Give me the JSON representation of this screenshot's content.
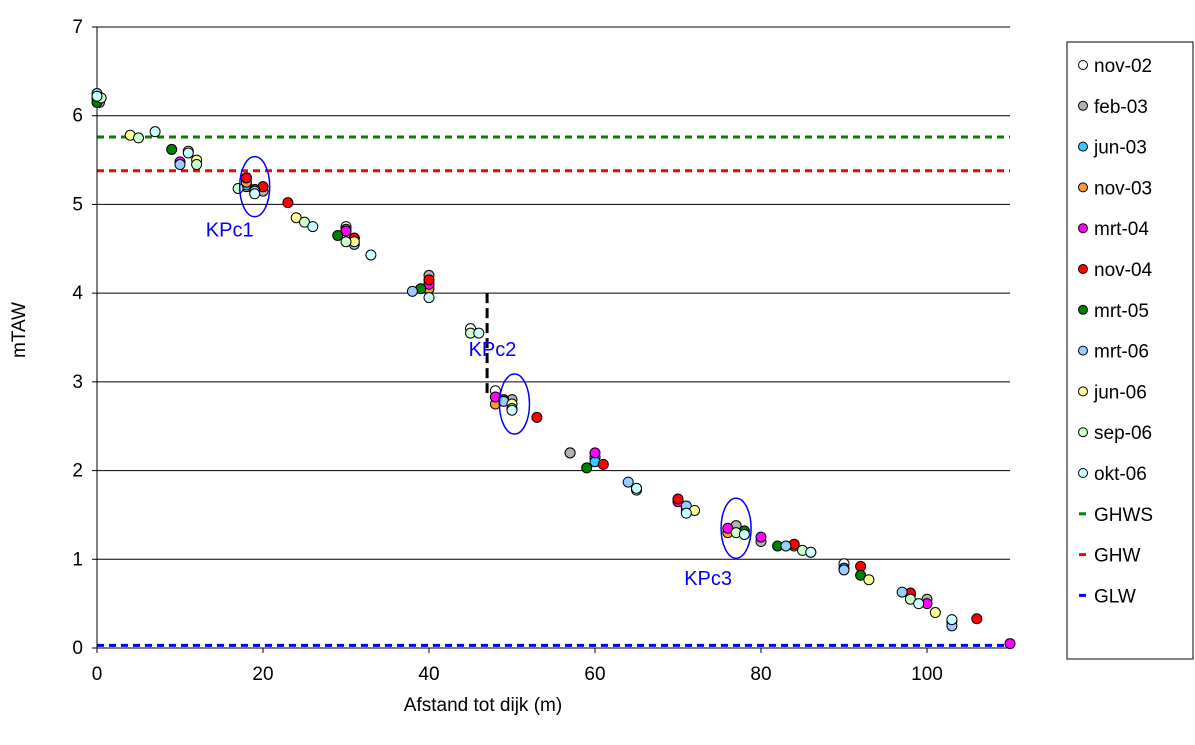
{
  "chart_data": {
    "type": "scatter",
    "xlabel": "Afstand tot dijk (m)",
    "ylabel": "mTAW",
    "xlim": [
      0,
      110
    ],
    "ylim": [
      0,
      7
    ],
    "xticks": [
      "0",
      "20",
      "40",
      "60",
      "80",
      "100"
    ],
    "yticks": [
      "0",
      "1",
      "2",
      "3",
      "4",
      "5",
      "6",
      "7"
    ],
    "grid": "horizontal",
    "legend_position": "right",
    "series": [
      {
        "name": "nov-02",
        "color": "#ffffff",
        "points": [
          [
            0,
            6.2
          ],
          [
            11,
            5.6
          ],
          [
            30,
            4.75
          ],
          [
            40,
            4.15
          ],
          [
            45,
            3.6
          ],
          [
            48,
            2.9
          ],
          [
            57,
            2.2
          ],
          [
            60,
            2.15
          ],
          [
            65,
            1.8
          ],
          [
            71,
            1.55
          ],
          [
            77,
            1.35
          ],
          [
            90,
            0.95
          ],
          [
            103,
            0.3
          ]
        ]
      },
      {
        "name": "feb-03",
        "color": "#b2b2b2",
        "points": [
          [
            0.3,
            6.15
          ],
          [
            18,
            5.2
          ],
          [
            20,
            5.15
          ],
          [
            30,
            4.72
          ],
          [
            40,
            4.2
          ],
          [
            50,
            2.8
          ],
          [
            57,
            2.2
          ],
          [
            60,
            2.15
          ],
          [
            77,
            1.38
          ],
          [
            80,
            1.2
          ],
          [
            100,
            0.55
          ]
        ]
      },
      {
        "name": "jun-03",
        "color": "#33ccff",
        "points": [
          [
            0,
            6.2
          ],
          [
            18,
            5.22
          ],
          [
            30,
            4.7
          ],
          [
            40,
            4.1
          ],
          [
            60,
            2.1
          ],
          [
            70,
            1.65
          ],
          [
            90,
            0.9
          ]
        ]
      },
      {
        "name": "nov-03",
        "color": "#ff9933",
        "points": [
          [
            0.2,
            6.2
          ],
          [
            18,
            5.25
          ],
          [
            31,
            4.62
          ],
          [
            40,
            4.05
          ],
          [
            48,
            2.75
          ],
          [
            76,
            1.3
          ],
          [
            84,
            1.15
          ],
          [
            98,
            0.6
          ]
        ]
      },
      {
        "name": "mrt-04",
        "color": "#ff00ff",
        "points": [
          [
            10,
            5.48
          ],
          [
            18,
            5.3
          ],
          [
            30,
            4.7
          ],
          [
            40,
            4.1
          ],
          [
            48,
            2.83
          ],
          [
            60,
            2.2
          ],
          [
            70,
            1.65
          ],
          [
            76,
            1.35
          ],
          [
            80,
            1.25
          ],
          [
            100,
            0.5
          ],
          [
            110,
            0.05
          ]
        ]
      },
      {
        "name": "nov-04",
        "color": "#ff0000",
        "points": [
          [
            18,
            5.3
          ],
          [
            20,
            5.2
          ],
          [
            23,
            5.02
          ],
          [
            31,
            4.62
          ],
          [
            40,
            4.15
          ],
          [
            53,
            2.6
          ],
          [
            61,
            2.07
          ],
          [
            70,
            1.68
          ],
          [
            84,
            1.17
          ],
          [
            92,
            0.92
          ],
          [
            98,
            0.62
          ],
          [
            106,
            0.33
          ]
        ]
      },
      {
        "name": "mrt-05",
        "color": "#008000",
        "points": [
          [
            0,
            6.15
          ],
          [
            9,
            5.62
          ],
          [
            19,
            5.17
          ],
          [
            29,
            4.65
          ],
          [
            39,
            4.05
          ],
          [
            49,
            2.8
          ],
          [
            59,
            2.03
          ],
          [
            71,
            1.58
          ],
          [
            78,
            1.32
          ],
          [
            82,
            1.15
          ],
          [
            92,
            0.82
          ]
        ]
      },
      {
        "name": "mrt-06",
        "color": "#99ccff",
        "points": [
          [
            0,
            6.25
          ],
          [
            10,
            5.45
          ],
          [
            19,
            5.15
          ],
          [
            31,
            4.55
          ],
          [
            38,
            4.02
          ],
          [
            49,
            2.78
          ],
          [
            64,
            1.87
          ],
          [
            71,
            1.6
          ],
          [
            83,
            1.15
          ],
          [
            90,
            0.88
          ],
          [
            97,
            0.63
          ],
          [
            103,
            0.25
          ]
        ]
      },
      {
        "name": "jun-06",
        "color": "#ffff99",
        "points": [
          [
            4,
            5.78
          ],
          [
            12,
            5.5
          ],
          [
            24,
            4.85
          ],
          [
            31,
            4.58
          ],
          [
            50,
            2.75
          ],
          [
            72,
            1.55
          ],
          [
            86,
            1.08
          ],
          [
            93,
            0.77
          ],
          [
            101,
            0.4
          ]
        ]
      },
      {
        "name": "sep-06",
        "color": "#ccffcc",
        "points": [
          [
            0.5,
            6.2
          ],
          [
            5,
            5.75
          ],
          [
            12,
            5.45
          ],
          [
            17,
            5.18
          ],
          [
            25,
            4.8
          ],
          [
            30,
            4.58
          ],
          [
            45,
            3.55
          ],
          [
            50,
            2.7
          ],
          [
            65,
            1.78
          ],
          [
            77,
            1.3
          ],
          [
            85,
            1.1
          ],
          [
            98,
            0.55
          ]
        ]
      },
      {
        "name": "okt-06",
        "color": "#ccffff",
        "points": [
          [
            0,
            6.22
          ],
          [
            7,
            5.82
          ],
          [
            11,
            5.58
          ],
          [
            19,
            5.12
          ],
          [
            26,
            4.75
          ],
          [
            33,
            4.43
          ],
          [
            40,
            3.95
          ],
          [
            46,
            3.55
          ],
          [
            50,
            2.68
          ],
          [
            65,
            1.8
          ],
          [
            71,
            1.52
          ],
          [
            78,
            1.28
          ],
          [
            86,
            1.08
          ],
          [
            99,
            0.5
          ],
          [
            103,
            0.32
          ]
        ]
      }
    ],
    "lines": [
      {
        "name": "GHWS",
        "color": "#008000",
        "y": 5.76
      },
      {
        "name": "GHW",
        "color": "#ff0000",
        "y": 5.38
      },
      {
        "name": "GLW",
        "color": "#0000ff",
        "y": 0.03
      }
    ],
    "annotations": [
      {
        "text": "KPc1",
        "x": 19,
        "y": 5.2,
        "color": "#0000ff"
      },
      {
        "text": "KPc2",
        "x": 50.3,
        "y": 2.75,
        "color": "#0000ff"
      },
      {
        "text": "KPc3",
        "x": 77,
        "y": 1.35,
        "color": "#0000ff"
      }
    ],
    "separator": {
      "x": 47,
      "y_from": 2.85,
      "y_to": 4
    }
  }
}
